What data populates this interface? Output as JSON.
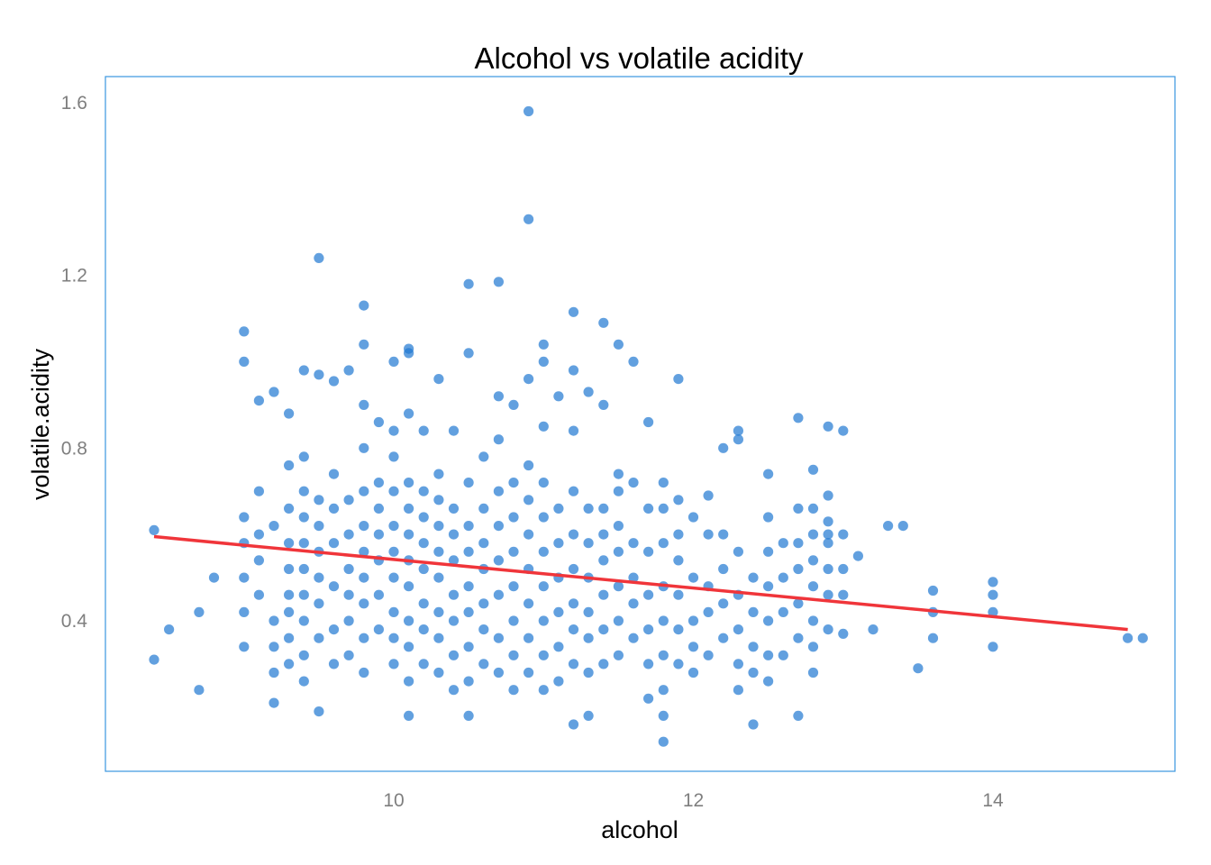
{
  "chart_data": {
    "type": "scatter",
    "title": "Alcohol vs volatile acidity",
    "xlabel": "alcohol",
    "ylabel": "volatile.acidity",
    "xlim": [
      8.4,
      14.9
    ],
    "ylim": [
      0.12,
      1.58
    ],
    "x_ticks": [
      10,
      12,
      14
    ],
    "x_tick_labels": [
      "10",
      "12",
      "14"
    ],
    "y_ticks": [
      0.4,
      0.8,
      1.2,
      1.6
    ],
    "y_tick_labels": [
      "0.4",
      "0.8",
      "1.2",
      "1.6"
    ],
    "grid": false,
    "legend": "none",
    "colors": {
      "points": "#1f78d1",
      "trend": "#f0353a",
      "panel_border": "#3a96e0",
      "tick_text": "#7f7f7f"
    },
    "trend_line": {
      "x": [
        8.4,
        14.9
      ],
      "y": [
        0.595,
        0.38
      ]
    },
    "points": [
      [
        8.4,
        0.61
      ],
      [
        8.4,
        0.31
      ],
      [
        8.5,
        0.38
      ],
      [
        8.7,
        0.42
      ],
      [
        8.7,
        0.24
      ],
      [
        8.8,
        0.5
      ],
      [
        14.9,
        0.36
      ],
      [
        15.0,
        0.36
      ],
      [
        14.0,
        0.49
      ],
      [
        14.0,
        0.46
      ],
      [
        14.0,
        0.42
      ],
      [
        14.0,
        0.34
      ],
      [
        13.5,
        0.29
      ],
      [
        13.3,
        0.62
      ],
      [
        13.4,
        0.62
      ],
      [
        13.6,
        0.47
      ],
      [
        13.6,
        0.42
      ],
      [
        13.6,
        0.36
      ],
      [
        13.2,
        0.38
      ],
      [
        13.1,
        0.55
      ],
      [
        13.0,
        0.84
      ],
      [
        13.0,
        0.6
      ],
      [
        13.0,
        0.37
      ],
      [
        10.9,
        1.58
      ],
      [
        10.9,
        1.33
      ],
      [
        9.5,
        1.24
      ],
      [
        10.5,
        1.18
      ],
      [
        10.7,
        1.185
      ],
      [
        9.8,
        1.13
      ],
      [
        11.2,
        1.115
      ],
      [
        11.4,
        1.09
      ],
      [
        9.0,
        1.07
      ],
      [
        9.0,
        1.0
      ],
      [
        10.1,
        1.02
      ],
      [
        10.1,
        1.03
      ],
      [
        10.0,
        1.0
      ],
      [
        9.8,
        1.04
      ],
      [
        11.0,
        1.04
      ],
      [
        11.5,
        1.04
      ],
      [
        10.5,
        1.02
      ],
      [
        11.0,
        1.0
      ],
      [
        11.6,
        1.0
      ],
      [
        9.4,
        0.98
      ],
      [
        9.7,
        0.98
      ],
      [
        9.5,
        0.97
      ],
      [
        10.3,
        0.96
      ],
      [
        10.9,
        0.96
      ],
      [
        11.9,
        0.96
      ],
      [
        11.2,
        0.98
      ],
      [
        9.6,
        0.955
      ],
      [
        11.3,
        0.93
      ],
      [
        9.2,
        0.93
      ],
      [
        9.3,
        0.88
      ],
      [
        9.1,
        0.91
      ],
      [
        12.7,
        0.87
      ],
      [
        12.9,
        0.85
      ],
      [
        12.3,
        0.84
      ],
      [
        12.3,
        0.82
      ],
      [
        12.2,
        0.8
      ],
      [
        12.5,
        0.74
      ],
      [
        12.8,
        0.75
      ],
      [
        12.8,
        0.66
      ],
      [
        12.9,
        0.69
      ],
      [
        12.1,
        0.69
      ],
      [
        12.7,
        0.66
      ],
      [
        12.9,
        0.6
      ],
      [
        11.8,
        0.12
      ],
      [
        12.4,
        0.16
      ],
      [
        11.2,
        0.16
      ],
      [
        11.3,
        0.18
      ],
      [
        11.8,
        0.18
      ],
      [
        12.7,
        0.18
      ],
      [
        10.1,
        0.18
      ],
      [
        10.5,
        0.18
      ],
      [
        9.5,
        0.19
      ],
      [
        9.2,
        0.21
      ],
      [
        9.2,
        0.34
      ],
      [
        9.2,
        0.4
      ],
      [
        9.3,
        0.46
      ],
      [
        9.3,
        0.52
      ],
      [
        9.4,
        0.58
      ],
      [
        9.4,
        0.64
      ],
      [
        9.4,
        0.7
      ],
      [
        9.5,
        0.36
      ],
      [
        9.5,
        0.44
      ],
      [
        9.5,
        0.5
      ],
      [
        9.5,
        0.56
      ],
      [
        9.5,
        0.62
      ],
      [
        9.5,
        0.68
      ],
      [
        9.6,
        0.3
      ],
      [
        9.6,
        0.38
      ],
      [
        9.6,
        0.48
      ],
      [
        9.6,
        0.58
      ],
      [
        9.6,
        0.66
      ],
      [
        9.6,
        0.74
      ],
      [
        9.0,
        0.34
      ],
      [
        9.0,
        0.42
      ],
      [
        9.0,
        0.5
      ],
      [
        9.0,
        0.58
      ],
      [
        9.0,
        0.64
      ],
      [
        9.1,
        0.46
      ],
      [
        9.1,
        0.54
      ],
      [
        9.1,
        0.6
      ],
      [
        9.1,
        0.7
      ],
      [
        9.2,
        0.28
      ],
      [
        9.2,
        0.62
      ],
      [
        9.3,
        0.3
      ],
      [
        9.3,
        0.36
      ],
      [
        9.3,
        0.42
      ],
      [
        9.3,
        0.58
      ],
      [
        9.3,
        0.66
      ],
      [
        9.3,
        0.76
      ],
      [
        9.4,
        0.26
      ],
      [
        9.4,
        0.32
      ],
      [
        9.4,
        0.4
      ],
      [
        9.4,
        0.46
      ],
      [
        9.4,
        0.52
      ],
      [
        9.4,
        0.78
      ],
      [
        9.7,
        0.32
      ],
      [
        9.7,
        0.4
      ],
      [
        9.7,
        0.46
      ],
      [
        9.7,
        0.52
      ],
      [
        9.7,
        0.6
      ],
      [
        9.7,
        0.68
      ],
      [
        9.8,
        0.28
      ],
      [
        9.8,
        0.36
      ],
      [
        9.8,
        0.44
      ],
      [
        9.8,
        0.5
      ],
      [
        9.8,
        0.56
      ],
      [
        9.8,
        0.62
      ],
      [
        9.8,
        0.7
      ],
      [
        9.8,
        0.8
      ],
      [
        9.8,
        0.9
      ],
      [
        9.9,
        0.38
      ],
      [
        9.9,
        0.46
      ],
      [
        9.9,
        0.54
      ],
      [
        9.9,
        0.6
      ],
      [
        9.9,
        0.66
      ],
      [
        9.9,
        0.72
      ],
      [
        9.9,
        0.86
      ],
      [
        10.0,
        0.3
      ],
      [
        10.0,
        0.36
      ],
      [
        10.0,
        0.42
      ],
      [
        10.0,
        0.5
      ],
      [
        10.0,
        0.56
      ],
      [
        10.0,
        0.62
      ],
      [
        10.0,
        0.7
      ],
      [
        10.0,
        0.78
      ],
      [
        10.0,
        0.84
      ],
      [
        10.1,
        0.26
      ],
      [
        10.1,
        0.34
      ],
      [
        10.1,
        0.4
      ],
      [
        10.1,
        0.48
      ],
      [
        10.1,
        0.54
      ],
      [
        10.1,
        0.6
      ],
      [
        10.1,
        0.66
      ],
      [
        10.1,
        0.72
      ],
      [
        10.1,
        0.88
      ],
      [
        10.2,
        0.3
      ],
      [
        10.2,
        0.38
      ],
      [
        10.2,
        0.44
      ],
      [
        10.2,
        0.52
      ],
      [
        10.2,
        0.58
      ],
      [
        10.2,
        0.64
      ],
      [
        10.2,
        0.7
      ],
      [
        10.2,
        0.84
      ],
      [
        10.3,
        0.28
      ],
      [
        10.3,
        0.36
      ],
      [
        10.3,
        0.42
      ],
      [
        10.3,
        0.5
      ],
      [
        10.3,
        0.56
      ],
      [
        10.3,
        0.62
      ],
      [
        10.3,
        0.68
      ],
      [
        10.3,
        0.74
      ],
      [
        10.4,
        0.24
      ],
      [
        10.4,
        0.32
      ],
      [
        10.4,
        0.4
      ],
      [
        10.4,
        0.46
      ],
      [
        10.4,
        0.54
      ],
      [
        10.4,
        0.6
      ],
      [
        10.4,
        0.66
      ],
      [
        10.4,
        0.84
      ],
      [
        10.5,
        0.26
      ],
      [
        10.5,
        0.34
      ],
      [
        10.5,
        0.42
      ],
      [
        10.5,
        0.48
      ],
      [
        10.5,
        0.56
      ],
      [
        10.5,
        0.62
      ],
      [
        10.5,
        0.72
      ],
      [
        10.6,
        0.3
      ],
      [
        10.6,
        0.38
      ],
      [
        10.6,
        0.44
      ],
      [
        10.6,
        0.52
      ],
      [
        10.6,
        0.58
      ],
      [
        10.6,
        0.66
      ],
      [
        10.6,
        0.78
      ],
      [
        10.7,
        0.28
      ],
      [
        10.7,
        0.36
      ],
      [
        10.7,
        0.46
      ],
      [
        10.7,
        0.54
      ],
      [
        10.7,
        0.62
      ],
      [
        10.7,
        0.7
      ],
      [
        10.7,
        0.82
      ],
      [
        10.7,
        0.92
      ],
      [
        10.8,
        0.24
      ],
      [
        10.8,
        0.32
      ],
      [
        10.8,
        0.4
      ],
      [
        10.8,
        0.48
      ],
      [
        10.8,
        0.56
      ],
      [
        10.8,
        0.64
      ],
      [
        10.8,
        0.72
      ],
      [
        10.8,
        0.9
      ],
      [
        10.9,
        0.28
      ],
      [
        10.9,
        0.36
      ],
      [
        10.9,
        0.44
      ],
      [
        10.9,
        0.52
      ],
      [
        10.9,
        0.6
      ],
      [
        10.9,
        0.68
      ],
      [
        10.9,
        0.76
      ],
      [
        11.0,
        0.24
      ],
      [
        11.0,
        0.32
      ],
      [
        11.0,
        0.4
      ],
      [
        11.0,
        0.48
      ],
      [
        11.0,
        0.56
      ],
      [
        11.0,
        0.64
      ],
      [
        11.0,
        0.72
      ],
      [
        11.0,
        0.85
      ],
      [
        11.1,
        0.26
      ],
      [
        11.1,
        0.34
      ],
      [
        11.1,
        0.42
      ],
      [
        11.1,
        0.5
      ],
      [
        11.1,
        0.58
      ],
      [
        11.1,
        0.66
      ],
      [
        11.1,
        0.92
      ],
      [
        11.2,
        0.3
      ],
      [
        11.2,
        0.38
      ],
      [
        11.2,
        0.44
      ],
      [
        11.2,
        0.52
      ],
      [
        11.2,
        0.6
      ],
      [
        11.2,
        0.7
      ],
      [
        11.2,
        0.84
      ],
      [
        11.3,
        0.28
      ],
      [
        11.3,
        0.36
      ],
      [
        11.3,
        0.42
      ],
      [
        11.3,
        0.5
      ],
      [
        11.3,
        0.58
      ],
      [
        11.3,
        0.66
      ],
      [
        11.4,
        0.3
      ],
      [
        11.4,
        0.38
      ],
      [
        11.4,
        0.46
      ],
      [
        11.4,
        0.54
      ],
      [
        11.4,
        0.6
      ],
      [
        11.4,
        0.66
      ],
      [
        11.4,
        0.9
      ],
      [
        11.5,
        0.32
      ],
      [
        11.5,
        0.4
      ],
      [
        11.5,
        0.48
      ],
      [
        11.5,
        0.56
      ],
      [
        11.5,
        0.62
      ],
      [
        11.5,
        0.7
      ],
      [
        11.5,
        0.74
      ],
      [
        11.6,
        0.36
      ],
      [
        11.6,
        0.44
      ],
      [
        11.6,
        0.5
      ],
      [
        11.6,
        0.58
      ],
      [
        11.6,
        0.72
      ],
      [
        11.7,
        0.22
      ],
      [
        11.7,
        0.3
      ],
      [
        11.7,
        0.38
      ],
      [
        11.7,
        0.46
      ],
      [
        11.7,
        0.56
      ],
      [
        11.7,
        0.66
      ],
      [
        11.7,
        0.86
      ],
      [
        11.8,
        0.24
      ],
      [
        11.8,
        0.32
      ],
      [
        11.8,
        0.4
      ],
      [
        11.8,
        0.48
      ],
      [
        11.8,
        0.58
      ],
      [
        11.8,
        0.66
      ],
      [
        11.8,
        0.72
      ],
      [
        11.9,
        0.3
      ],
      [
        11.9,
        0.38
      ],
      [
        11.9,
        0.46
      ],
      [
        11.9,
        0.54
      ],
      [
        11.9,
        0.6
      ],
      [
        11.9,
        0.68
      ],
      [
        12.0,
        0.28
      ],
      [
        12.0,
        0.34
      ],
      [
        12.0,
        0.4
      ],
      [
        12.0,
        0.5
      ],
      [
        12.0,
        0.64
      ],
      [
        12.1,
        0.32
      ],
      [
        12.1,
        0.42
      ],
      [
        12.1,
        0.48
      ],
      [
        12.1,
        0.6
      ],
      [
        12.2,
        0.36
      ],
      [
        12.2,
        0.44
      ],
      [
        12.2,
        0.52
      ],
      [
        12.2,
        0.6
      ],
      [
        12.3,
        0.24
      ],
      [
        12.3,
        0.3
      ],
      [
        12.3,
        0.38
      ],
      [
        12.3,
        0.46
      ],
      [
        12.3,
        0.56
      ],
      [
        12.4,
        0.28
      ],
      [
        12.4,
        0.34
      ],
      [
        12.4,
        0.42
      ],
      [
        12.4,
        0.5
      ],
      [
        12.5,
        0.26
      ],
      [
        12.5,
        0.32
      ],
      [
        12.5,
        0.4
      ],
      [
        12.5,
        0.48
      ],
      [
        12.5,
        0.56
      ],
      [
        12.5,
        0.64
      ],
      [
        12.6,
        0.32
      ],
      [
        12.6,
        0.42
      ],
      [
        12.6,
        0.5
      ],
      [
        12.6,
        0.58
      ],
      [
        12.7,
        0.36
      ],
      [
        12.7,
        0.44
      ],
      [
        12.7,
        0.52
      ],
      [
        12.7,
        0.58
      ],
      [
        12.8,
        0.28
      ],
      [
        12.8,
        0.34
      ],
      [
        12.8,
        0.4
      ],
      [
        12.8,
        0.48
      ],
      [
        12.8,
        0.54
      ],
      [
        12.8,
        0.6
      ],
      [
        12.9,
        0.38
      ],
      [
        12.9,
        0.46
      ],
      [
        12.9,
        0.52
      ],
      [
        12.9,
        0.58
      ],
      [
        12.9,
        0.63
      ],
      [
        13.0,
        0.46
      ],
      [
        13.0,
        0.52
      ]
    ]
  }
}
